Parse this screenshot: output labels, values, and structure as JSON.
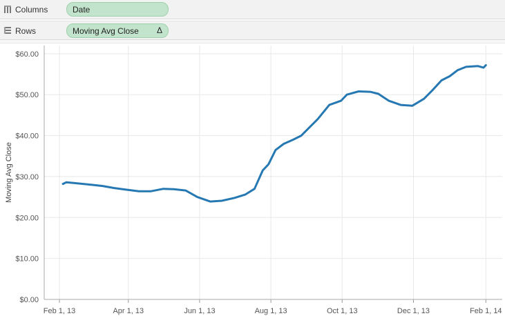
{
  "shelves": {
    "columns": {
      "label": "Columns",
      "pill": "Date"
    },
    "rows": {
      "label": "Rows",
      "pill": "Moving Avg Close",
      "pill_delta": "Δ"
    }
  },
  "colors": {
    "line": "#2678b2",
    "pill_bg": "#c3e4cc",
    "grid": "#e8e8e8"
  },
  "icons": {
    "columns_icon": "columns-grid-icon",
    "rows_icon": "rows-grid-icon"
  },
  "chart_data": {
    "type": "line",
    "title": "",
    "xlabel": "",
    "ylabel": "Moving Avg Close",
    "ylim": [
      0,
      62
    ],
    "xlim": [
      "2013-01-19",
      "2014-02-15"
    ],
    "grid": true,
    "y_ticks": [
      {
        "value": 0,
        "label": "$0.00"
      },
      {
        "value": 10,
        "label": "$10.00"
      },
      {
        "value": 20,
        "label": "$20.00"
      },
      {
        "value": 30,
        "label": "$30.00"
      },
      {
        "value": 40,
        "label": "$40.00"
      },
      {
        "value": 50,
        "label": "$50.00"
      },
      {
        "value": 60,
        "label": "$60.00"
      }
    ],
    "x_ticks": [
      {
        "value": "2013-02-01",
        "label": "Feb 1, 13"
      },
      {
        "value": "2013-04-01",
        "label": "Apr 1, 13"
      },
      {
        "value": "2013-06-01",
        "label": "Jun 1, 13"
      },
      {
        "value": "2013-08-01",
        "label": "Aug 1, 13"
      },
      {
        "value": "2013-10-01",
        "label": "Oct 1, 13"
      },
      {
        "value": "2013-12-01",
        "label": "Dec 1, 13"
      },
      {
        "value": "2014-02-01",
        "label": "Feb 1, 14"
      }
    ],
    "series": [
      {
        "x": [
          "2013-02-04",
          "2013-02-07",
          "2013-02-14",
          "2013-02-28",
          "2013-03-10",
          "2013-03-20",
          "2013-03-30",
          "2013-04-10",
          "2013-04-20",
          "2013-05-01",
          "2013-05-10",
          "2013-05-20",
          "2013-05-30",
          "2013-06-10",
          "2013-06-20",
          "2013-07-01",
          "2013-07-10",
          "2013-07-18",
          "2013-07-25",
          "2013-07-30",
          "2013-08-05",
          "2013-08-12",
          "2013-08-20",
          "2013-08-27",
          "2013-09-03",
          "2013-09-10",
          "2013-09-20",
          "2013-09-30",
          "2013-10-05",
          "2013-10-15",
          "2013-10-25",
          "2013-11-01",
          "2013-11-10",
          "2013-11-20",
          "2013-11-30",
          "2013-12-10",
          "2013-12-17",
          "2013-12-25",
          "2014-01-01",
          "2014-01-08",
          "2014-01-15",
          "2014-01-25",
          "2014-01-30",
          "2014-02-01"
        ],
        "y": [
          28.2,
          28.6,
          28.4,
          28.0,
          27.7,
          27.2,
          26.8,
          26.4,
          26.4,
          27.0,
          26.9,
          26.6,
          25.0,
          23.9,
          24.1,
          24.8,
          25.6,
          27.0,
          31.5,
          33.0,
          36.5,
          38.0,
          39.0,
          40.0,
          42.0,
          44.0,
          47.5,
          48.5,
          50.0,
          50.8,
          50.7,
          50.2,
          48.5,
          47.5,
          47.3,
          49.0,
          51.0,
          53.5,
          54.5,
          56.0,
          56.8,
          57.0,
          56.6,
          57.2
        ]
      }
    ]
  }
}
